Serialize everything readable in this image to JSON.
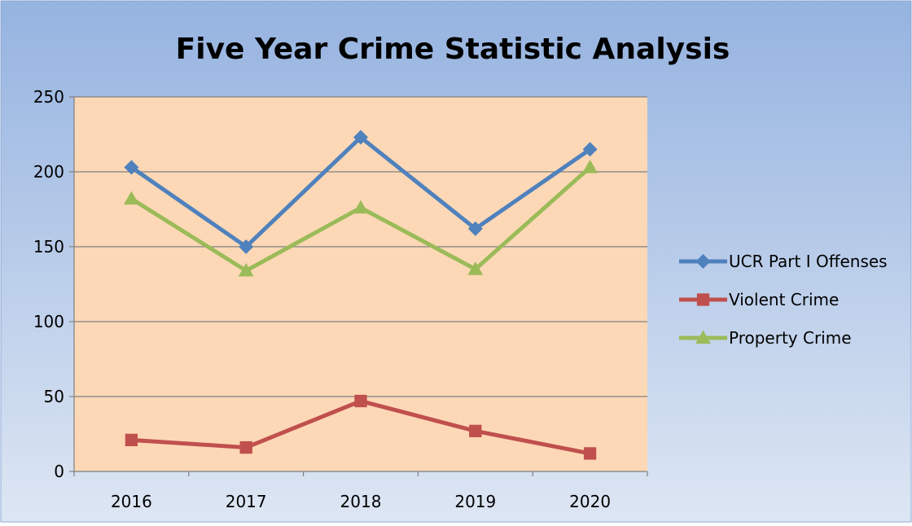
{
  "chart_data": {
    "type": "line",
    "title": "Five Year Crime Statistic Analysis",
    "xlabel": "",
    "ylabel": "",
    "categories": [
      "2016",
      "2017",
      "2018",
      "2019",
      "2020"
    ],
    "ylim": [
      0,
      250
    ],
    "yticks": [
      0,
      50,
      100,
      150,
      200,
      250
    ],
    "grid": true,
    "legend_position": "right",
    "series": [
      {
        "name": "UCR Part I Offenses",
        "values": [
          203,
          150,
          223,
          162,
          215
        ],
        "color": "#4f81bd",
        "marker": "diamond"
      },
      {
        "name": "Violent Crime",
        "values": [
          21,
          16,
          47,
          27,
          12
        ],
        "color": "#c0504d",
        "marker": "square"
      },
      {
        "name": "Property Crime",
        "values": [
          182,
          134,
          176,
          135,
          203
        ],
        "color": "#9bbb59",
        "marker": "triangle"
      }
    ]
  },
  "colors": {
    "background_top": "#95b3e0",
    "background_bottom": "#dde6f3",
    "plot_area": "#fdd8b6",
    "gridline": "#808080",
    "axis_text": "#000000"
  }
}
